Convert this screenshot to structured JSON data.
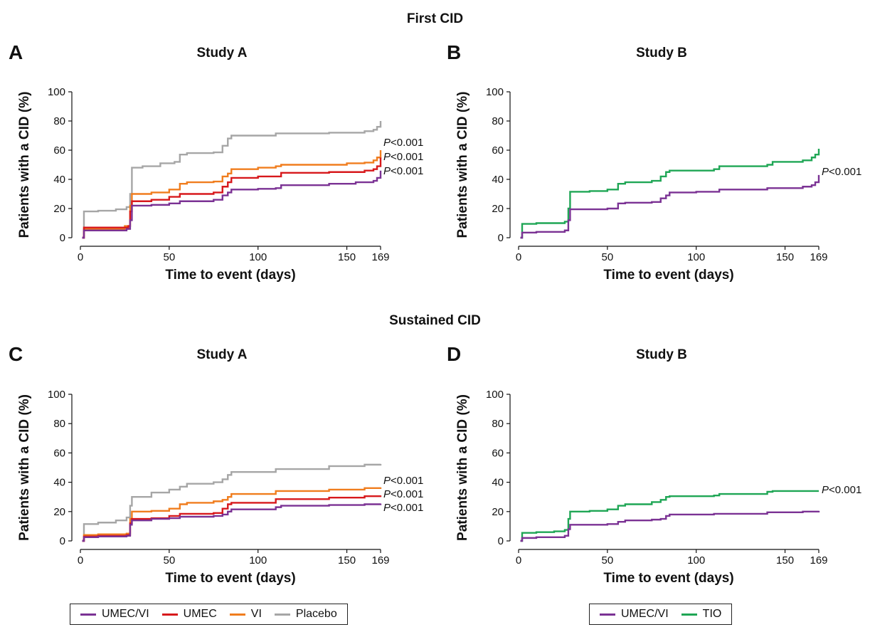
{
  "sections": {
    "top": "First CID",
    "bottom": "Sustained CID"
  },
  "colors": {
    "UMEC/VI": "#7b3294",
    "UMEC": "#d7191c",
    "VI": "#f07d1e",
    "Placebo": "#a6a6a6",
    "TIO": "#1fa655"
  },
  "legends": {
    "left": [
      "UMEC/VI",
      "UMEC",
      "VI",
      "Placebo"
    ],
    "right": [
      "UMEC/VI",
      "TIO"
    ]
  },
  "chart_data": [
    {
      "panel": "A",
      "title": "Study A",
      "type": "line",
      "xlabel": "Time to event (days)",
      "ylabel": "Patients with a CID (%)",
      "xlim": [
        0,
        169
      ],
      "ylim": [
        0,
        100
      ],
      "xticks": [
        "0",
        "50",
        "100",
        "150",
        "169"
      ],
      "yticks": [
        "0",
        "20",
        "40",
        "60",
        "80",
        "100"
      ],
      "annotations": [
        "P<0.001",
        "P<0.001",
        "P<0.001"
      ],
      "series": [
        {
          "name": "Placebo",
          "points": [
            [
              1,
              0
            ],
            [
              2,
              18
            ],
            [
              10,
              18.5
            ],
            [
              20,
              19.5
            ],
            [
              26,
              21
            ],
            [
              28,
              30
            ],
            [
              29,
              48
            ],
            [
              35,
              49
            ],
            [
              45,
              51
            ],
            [
              53,
              52
            ],
            [
              56,
              57
            ],
            [
              60,
              58
            ],
            [
              75,
              58.5
            ],
            [
              80,
              63
            ],
            [
              83,
              68
            ],
            [
              85,
              70
            ],
            [
              110,
              71.5
            ],
            [
              140,
              72
            ],
            [
              160,
              73
            ],
            [
              165,
              74
            ],
            [
              167,
              76
            ],
            [
              169,
              80
            ]
          ]
        },
        {
          "name": "VI",
          "points": [
            [
              1,
              0
            ],
            [
              2,
              6
            ],
            [
              10,
              6
            ],
            [
              25,
              8
            ],
            [
              28,
              22
            ],
            [
              29,
              30
            ],
            [
              40,
              31
            ],
            [
              50,
              33
            ],
            [
              56,
              37
            ],
            [
              60,
              38
            ],
            [
              75,
              38.5
            ],
            [
              80,
              42
            ],
            [
              83,
              44
            ],
            [
              85,
              47
            ],
            [
              100,
              48
            ],
            [
              110,
              49
            ],
            [
              113,
              50
            ],
            [
              150,
              51
            ],
            [
              160,
              51.5
            ],
            [
              165,
              53
            ],
            [
              167,
              55
            ],
            [
              169,
              60
            ]
          ]
        },
        {
          "name": "UMEC",
          "points": [
            [
              1,
              0
            ],
            [
              2,
              7
            ],
            [
              10,
              7
            ],
            [
              27,
              8
            ],
            [
              28,
              18
            ],
            [
              29,
              25
            ],
            [
              40,
              26
            ],
            [
              50,
              28
            ],
            [
              56,
              30
            ],
            [
              75,
              31
            ],
            [
              80,
              35
            ],
            [
              83,
              38
            ],
            [
              85,
              41
            ],
            [
              100,
              42
            ],
            [
              113,
              44.5
            ],
            [
              140,
              45
            ],
            [
              160,
              46
            ],
            [
              165,
              47
            ],
            [
              167,
              49
            ],
            [
              169,
              55
            ]
          ]
        },
        {
          "name": "UMEC/VI",
          "points": [
            [
              1,
              0
            ],
            [
              2,
              5
            ],
            [
              10,
              5
            ],
            [
              26,
              6
            ],
            [
              28,
              12
            ],
            [
              29,
              22
            ],
            [
              40,
              22.5
            ],
            [
              50,
              23.5
            ],
            [
              56,
              25
            ],
            [
              75,
              26
            ],
            [
              80,
              29
            ],
            [
              83,
              31
            ],
            [
              85,
              33
            ],
            [
              100,
              33.5
            ],
            [
              110,
              34
            ],
            [
              113,
              36
            ],
            [
              140,
              37
            ],
            [
              155,
              38
            ],
            [
              165,
              39
            ],
            [
              167,
              41
            ],
            [
              169,
              46
            ]
          ]
        }
      ]
    },
    {
      "panel": "B",
      "title": "Study B",
      "type": "line",
      "xlabel": "Time to event (days)",
      "ylabel": "Patients with a CID (%)",
      "xlim": [
        0,
        169
      ],
      "ylim": [
        0,
        100
      ],
      "xticks": [
        "0",
        "50",
        "100",
        "150",
        "169"
      ],
      "yticks": [
        "0",
        "20",
        "40",
        "60",
        "80",
        "100"
      ],
      "annotations": [
        "P<0.001"
      ],
      "series": [
        {
          "name": "TIO",
          "points": [
            [
              1,
              0
            ],
            [
              2,
              9.5
            ],
            [
              10,
              10
            ],
            [
              26,
              11
            ],
            [
              28,
              20
            ],
            [
              29,
              31.5
            ],
            [
              40,
              32
            ],
            [
              50,
              33
            ],
            [
              56,
              37
            ],
            [
              60,
              38
            ],
            [
              75,
              39
            ],
            [
              80,
              42
            ],
            [
              83,
              45
            ],
            [
              85,
              46
            ],
            [
              110,
              47
            ],
            [
              113,
              49
            ],
            [
              140,
              50
            ],
            [
              143,
              52
            ],
            [
              160,
              53
            ],
            [
              165,
              55
            ],
            [
              167,
              57
            ],
            [
              169,
              61
            ]
          ]
        },
        {
          "name": "UMEC/VI",
          "points": [
            [
              1,
              0
            ],
            [
              2,
              3.5
            ],
            [
              10,
              4
            ],
            [
              26,
              5
            ],
            [
              28,
              12
            ],
            [
              29,
              19.5
            ],
            [
              40,
              19.5
            ],
            [
              50,
              20
            ],
            [
              56,
              23.5
            ],
            [
              60,
              24
            ],
            [
              75,
              24.5
            ],
            [
              80,
              27
            ],
            [
              83,
              29
            ],
            [
              85,
              31
            ],
            [
              100,
              31.5
            ],
            [
              113,
              33
            ],
            [
              140,
              34
            ],
            [
              160,
              35
            ],
            [
              165,
              36
            ],
            [
              167,
              38
            ],
            [
              169,
              43
            ]
          ]
        }
      ]
    },
    {
      "panel": "C",
      "title": "Study A",
      "type": "line",
      "xlabel": "Time to event (days)",
      "ylabel": "Patients with a CID (%)",
      "xlim": [
        0,
        169
      ],
      "ylim": [
        0,
        100
      ],
      "xticks": [
        "0",
        "50",
        "100",
        "150",
        "169"
      ],
      "yticks": [
        "0",
        "20",
        "40",
        "60",
        "80",
        "100"
      ],
      "annotations": [
        "P<0.001",
        "P<0.001",
        "P<0.001"
      ],
      "series": [
        {
          "name": "Placebo",
          "points": [
            [
              1,
              0
            ],
            [
              2,
              11.5
            ],
            [
              10,
              12.5
            ],
            [
              20,
              14
            ],
            [
              26,
              16
            ],
            [
              28,
              24
            ],
            [
              29,
              30
            ],
            [
              40,
              33
            ],
            [
              50,
              35
            ],
            [
              56,
              37
            ],
            [
              60,
              39
            ],
            [
              75,
              40
            ],
            [
              80,
              42
            ],
            [
              83,
              45
            ],
            [
              85,
              47
            ],
            [
              110,
              49
            ],
            [
              140,
              51
            ],
            [
              160,
              52
            ],
            [
              169,
              52.5
            ]
          ]
        },
        {
          "name": "VI",
          "points": [
            [
              1,
              0
            ],
            [
              2,
              4
            ],
            [
              10,
              4.5
            ],
            [
              26,
              5
            ],
            [
              28,
              15
            ],
            [
              29,
              20
            ],
            [
              40,
              20.5
            ],
            [
              50,
              22
            ],
            [
              56,
              25
            ],
            [
              60,
              26
            ],
            [
              75,
              27
            ],
            [
              80,
              28
            ],
            [
              83,
              30
            ],
            [
              85,
              32
            ],
            [
              110,
              34
            ],
            [
              140,
              35
            ],
            [
              160,
              36
            ],
            [
              169,
              36.5
            ]
          ]
        },
        {
          "name": "UMEC",
          "points": [
            [
              1,
              0
            ],
            [
              2,
              3
            ],
            [
              10,
              3.5
            ],
            [
              26,
              4
            ],
            [
              28,
              12
            ],
            [
              29,
              15
            ],
            [
              40,
              15.5
            ],
            [
              50,
              17
            ],
            [
              56,
              18.5
            ],
            [
              75,
              19
            ],
            [
              80,
              22
            ],
            [
              83,
              25
            ],
            [
              85,
              26
            ],
            [
              110,
              28.5
            ],
            [
              140,
              29.5
            ],
            [
              160,
              30.5
            ],
            [
              169,
              31
            ]
          ]
        },
        {
          "name": "UMEC/VI",
          "points": [
            [
              1,
              0
            ],
            [
              2,
              2.5
            ],
            [
              10,
              3
            ],
            [
              26,
              3.5
            ],
            [
              28,
              11
            ],
            [
              29,
              14
            ],
            [
              40,
              15
            ],
            [
              50,
              15.5
            ],
            [
              56,
              16.5
            ],
            [
              75,
              17
            ],
            [
              80,
              18
            ],
            [
              83,
              20
            ],
            [
              85,
              21.5
            ],
            [
              110,
              23
            ],
            [
              113,
              24
            ],
            [
              140,
              24.5
            ],
            [
              160,
              25
            ],
            [
              169,
              25.5
            ]
          ]
        }
      ]
    },
    {
      "panel": "D",
      "title": "Study B",
      "type": "line",
      "xlabel": "Time to event (days)",
      "ylabel": "Patients with a CID (%)",
      "xlim": [
        0,
        169
      ],
      "ylim": [
        0,
        100
      ],
      "xticks": [
        "0",
        "50",
        "100",
        "150",
        "169"
      ],
      "yticks": [
        "0",
        "20",
        "40",
        "60",
        "80",
        "100"
      ],
      "annotations": [
        "P<0.001"
      ],
      "series": [
        {
          "name": "TIO",
          "points": [
            [
              1,
              0
            ],
            [
              2,
              5.5
            ],
            [
              10,
              6
            ],
            [
              20,
              6.5
            ],
            [
              26,
              7.5
            ],
            [
              28,
              15
            ],
            [
              29,
              20
            ],
            [
              40,
              20.5
            ],
            [
              50,
              21.5
            ],
            [
              56,
              24
            ],
            [
              60,
              25
            ],
            [
              75,
              26.5
            ],
            [
              80,
              28
            ],
            [
              83,
              30
            ],
            [
              85,
              30.5
            ],
            [
              110,
              31
            ],
            [
              113,
              32
            ],
            [
              140,
              33.5
            ],
            [
              143,
              34
            ],
            [
              160,
              34
            ],
            [
              169,
              34
            ]
          ]
        },
        {
          "name": "UMEC/VI",
          "points": [
            [
              1,
              0
            ],
            [
              2,
              2
            ],
            [
              10,
              2.5
            ],
            [
              26,
              3.5
            ],
            [
              28,
              8
            ],
            [
              29,
              11
            ],
            [
              40,
              11
            ],
            [
              50,
              11.5
            ],
            [
              56,
              13
            ],
            [
              60,
              14
            ],
            [
              75,
              14.5
            ],
            [
              80,
              15
            ],
            [
              83,
              17
            ],
            [
              85,
              18
            ],
            [
              110,
              18.5
            ],
            [
              140,
              19.5
            ],
            [
              160,
              20
            ],
            [
              169,
              20.5
            ]
          ]
        }
      ]
    }
  ]
}
